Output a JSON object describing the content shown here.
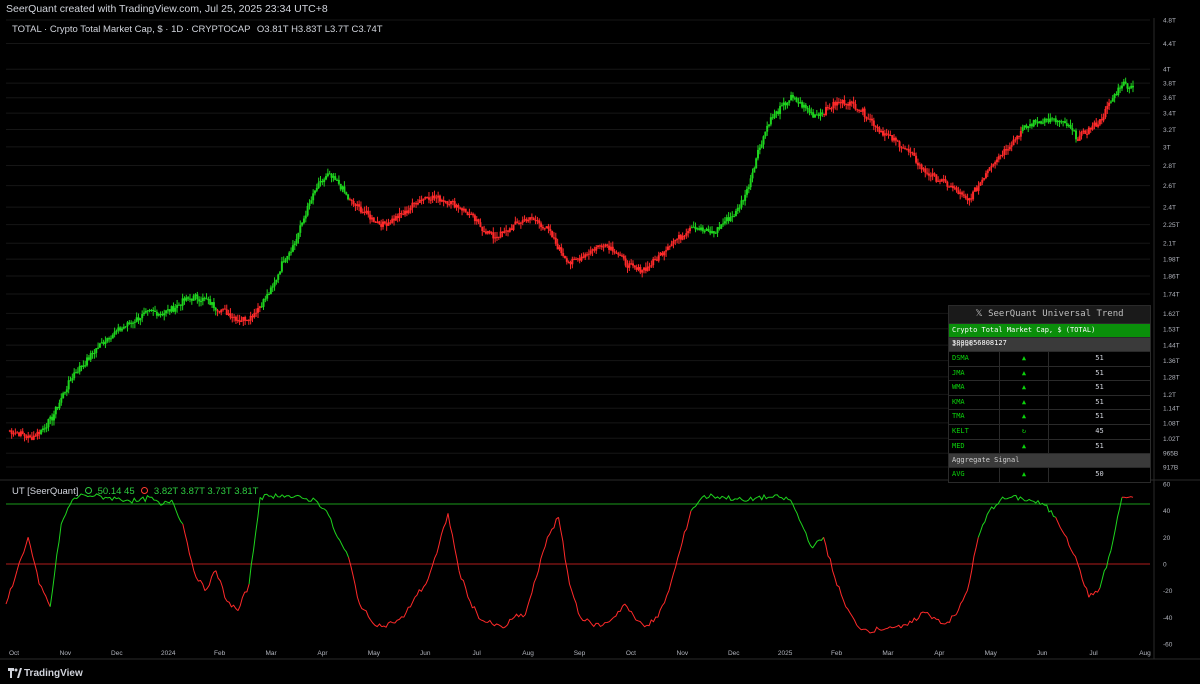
{
  "header": {
    "text": "SeerQuant created with TradingView.com, Jul 25, 2025 23:34 UTC+8"
  },
  "legend_main": {
    "symbol": "TOTAL · Crypto Total Market Cap, $ · 1D · CRYPTOCAP",
    "ohlc": "O3.81T  H3.83T  L3.7T  C3.74T"
  },
  "legend_osc": {
    "name": "UT [SeerQuant]",
    "values_a": "50.14  45",
    "values_b": "3.82T  3.87T  3.73T  3.81T"
  },
  "table": {
    "title": "SeerQuant Universal Trend",
    "asset": "Crypto Total Market Cap, $ (TOTAL)  3809856808127",
    "input_label": "Input",
    "rows": [
      {
        "name": "DSMA",
        "arrow": "▲",
        "value": "51"
      },
      {
        "name": "JMA",
        "arrow": "▲",
        "value": "51"
      },
      {
        "name": "WMA",
        "arrow": "▲",
        "value": "51"
      },
      {
        "name": "KMA",
        "arrow": "▲",
        "value": "51"
      },
      {
        "name": "TMA",
        "arrow": "▲",
        "value": "51"
      },
      {
        "name": "KELT",
        "arrow": "↻",
        "value": "45"
      },
      {
        "name": "MED",
        "arrow": "▲",
        "value": "51"
      }
    ],
    "aggregate_label": "Aggregate Signal",
    "aggregate": {
      "name": "AVG",
      "arrow": "▲",
      "value": "50"
    }
  },
  "footer": {
    "brand": "TradingView"
  },
  "colors": {
    "up": "#1ed41e",
    "down": "#ff2a2a",
    "bg": "#000000",
    "grid": "#161616"
  },
  "chart_data": [
    {
      "type": "line",
      "title": "TOTAL · Crypto Total Market Cap, $ · 1D · CRYPTOCAP",
      "y_scale": "log",
      "y_ticks": [
        "917B",
        "965B",
        "1.02T",
        "1.08T",
        "1.14T",
        "1.2T",
        "1.28T",
        "1.36T",
        "1.44T",
        "1.53T",
        "1.62T",
        "1.74T",
        "1.86T",
        "1.98T",
        "2.1T",
        "2.25T",
        "2.4T",
        "2.6T",
        "2.8T",
        "3T",
        "3.2T",
        "3.4T",
        "3.6T",
        "3.8T",
        "4T",
        "4.4T",
        "4.8T"
      ],
      "y_tick_values": [
        0.917,
        0.965,
        1.02,
        1.08,
        1.14,
        1.2,
        1.28,
        1.36,
        1.44,
        1.53,
        1.62,
        1.74,
        1.86,
        1.98,
        2.1,
        2.25,
        2.4,
        2.6,
        2.8,
        3.0,
        3.2,
        3.4,
        3.6,
        3.8,
        4.0,
        4.4,
        4.8
      ],
      "x_ticks": [
        "Oct",
        "Nov",
        "Dec",
        "2024",
        "Feb",
        "Mar",
        "Apr",
        "May",
        "Jun",
        "Jul",
        "Aug",
        "Sep",
        "Oct",
        "Nov",
        "Dec",
        "2025",
        "Feb",
        "Mar",
        "Apr",
        "May",
        "Jun",
        "Jul",
        "Aug"
      ],
      "series": [
        {
          "values_T": [
            1.05,
            1.04,
            1.02,
            1.05,
            1.1,
            1.2,
            1.3,
            1.35,
            1.42,
            1.48,
            1.52,
            1.56,
            1.6,
            1.63,
            1.62,
            1.65,
            1.7,
            1.72,
            1.7,
            1.65,
            1.62,
            1.58,
            1.6,
            1.68,
            1.78,
            1.98,
            2.1,
            2.35,
            2.58,
            2.7,
            2.62,
            2.45,
            2.38,
            2.3,
            2.25,
            2.3,
            2.35,
            2.45,
            2.5,
            2.48,
            2.45,
            2.4,
            2.32,
            2.22,
            2.15,
            2.18,
            2.25,
            2.3,
            2.28,
            2.2,
            2.05,
            1.95,
            2.0,
            2.05,
            2.1,
            2.05,
            1.95,
            1.9,
            1.92,
            2.0,
            2.1,
            2.15,
            2.25,
            2.2,
            2.18,
            2.28,
            2.35,
            2.55,
            2.95,
            3.3,
            3.45,
            3.6,
            3.5,
            3.38,
            3.42,
            3.52,
            3.55,
            3.48,
            3.35,
            3.2,
            3.1,
            3.02,
            2.9,
            2.75,
            2.68,
            2.62,
            2.55,
            2.45,
            2.6,
            2.8,
            2.92,
            3.05,
            3.2,
            3.28,
            3.32,
            3.3,
            3.25,
            3.1,
            3.2,
            3.3,
            3.55,
            3.8,
            3.74
          ],
          "up": [
            false,
            false,
            false,
            true,
            true,
            true,
            true,
            true,
            true,
            true,
            true,
            true,
            true,
            true,
            true,
            true,
            true,
            true,
            true,
            false,
            false,
            false,
            false,
            true,
            true,
            true,
            true,
            true,
            true,
            true,
            true,
            false,
            false,
            false,
            false,
            false,
            false,
            false,
            false,
            false,
            false,
            false,
            false,
            false,
            false,
            false,
            false,
            false,
            false,
            false,
            false,
            false,
            false,
            false,
            false,
            false,
            false,
            false,
            false,
            false,
            false,
            false,
            true,
            true,
            true,
            true,
            true,
            true,
            true,
            true,
            true,
            true,
            true,
            true,
            false,
            false,
            false,
            false,
            false,
            false,
            false,
            false,
            false,
            false,
            false,
            false,
            false,
            false,
            false,
            false,
            false,
            false,
            true,
            true,
            true,
            true,
            true,
            false,
            false,
            false,
            true,
            true,
            true
          ]
        }
      ]
    },
    {
      "type": "line",
      "title": "UT [SeerQuant]",
      "ylim": [
        -60,
        60
      ],
      "y_ticks": [
        60,
        40,
        20,
        0,
        -20,
        -40,
        -60
      ],
      "levels": [
        45,
        0
      ],
      "series": [
        {
          "name": "UT",
          "values": [
            -30,
            -5,
            20,
            -15,
            -32,
            30,
            48,
            52,
            51,
            50,
            49,
            48,
            47,
            50,
            44,
            48,
            30,
            -5,
            -20,
            -5,
            -28,
            -35,
            -15,
            50,
            51,
            52,
            50,
            49,
            48,
            40,
            20,
            5,
            -30,
            -42,
            -47,
            -44,
            -40,
            -25,
            -15,
            8,
            38,
            -5,
            -28,
            -42,
            -45,
            -48,
            -40,
            -38,
            -10,
            20,
            35,
            -15,
            -40,
            -45,
            -46,
            -40,
            -30,
            -42,
            -46,
            -40,
            -20,
            10,
            40,
            50,
            51,
            50,
            49,
            47,
            50,
            50,
            50,
            48,
            30,
            12,
            20,
            -10,
            -32,
            -46,
            -50,
            -49,
            -47,
            -48,
            -44,
            -36,
            -40,
            -45,
            -38,
            -20,
            20,
            40,
            48,
            50,
            49,
            47,
            44,
            35,
            20,
            0,
            -25,
            -18,
            10,
            50,
            50
          ],
          "up": [
            false,
            false,
            false,
            false,
            false,
            true,
            true,
            true,
            true,
            true,
            true,
            true,
            true,
            true,
            true,
            true,
            true,
            false,
            false,
            false,
            false,
            false,
            false,
            true,
            true,
            true,
            true,
            true,
            true,
            true,
            true,
            true,
            false,
            false,
            false,
            false,
            false,
            false,
            false,
            false,
            false,
            false,
            false,
            false,
            false,
            false,
            false,
            false,
            false,
            false,
            false,
            false,
            false,
            false,
            false,
            false,
            false,
            false,
            false,
            false,
            false,
            false,
            false,
            true,
            true,
            true,
            true,
            true,
            true,
            true,
            true,
            true,
            true,
            true,
            true,
            false,
            false,
            false,
            false,
            false,
            false,
            false,
            false,
            false,
            false,
            false,
            false,
            false,
            false,
            true,
            true,
            true,
            true,
            true,
            true,
            true,
            false,
            false,
            false,
            false,
            true,
            true
          ]
        }
      ]
    }
  ]
}
